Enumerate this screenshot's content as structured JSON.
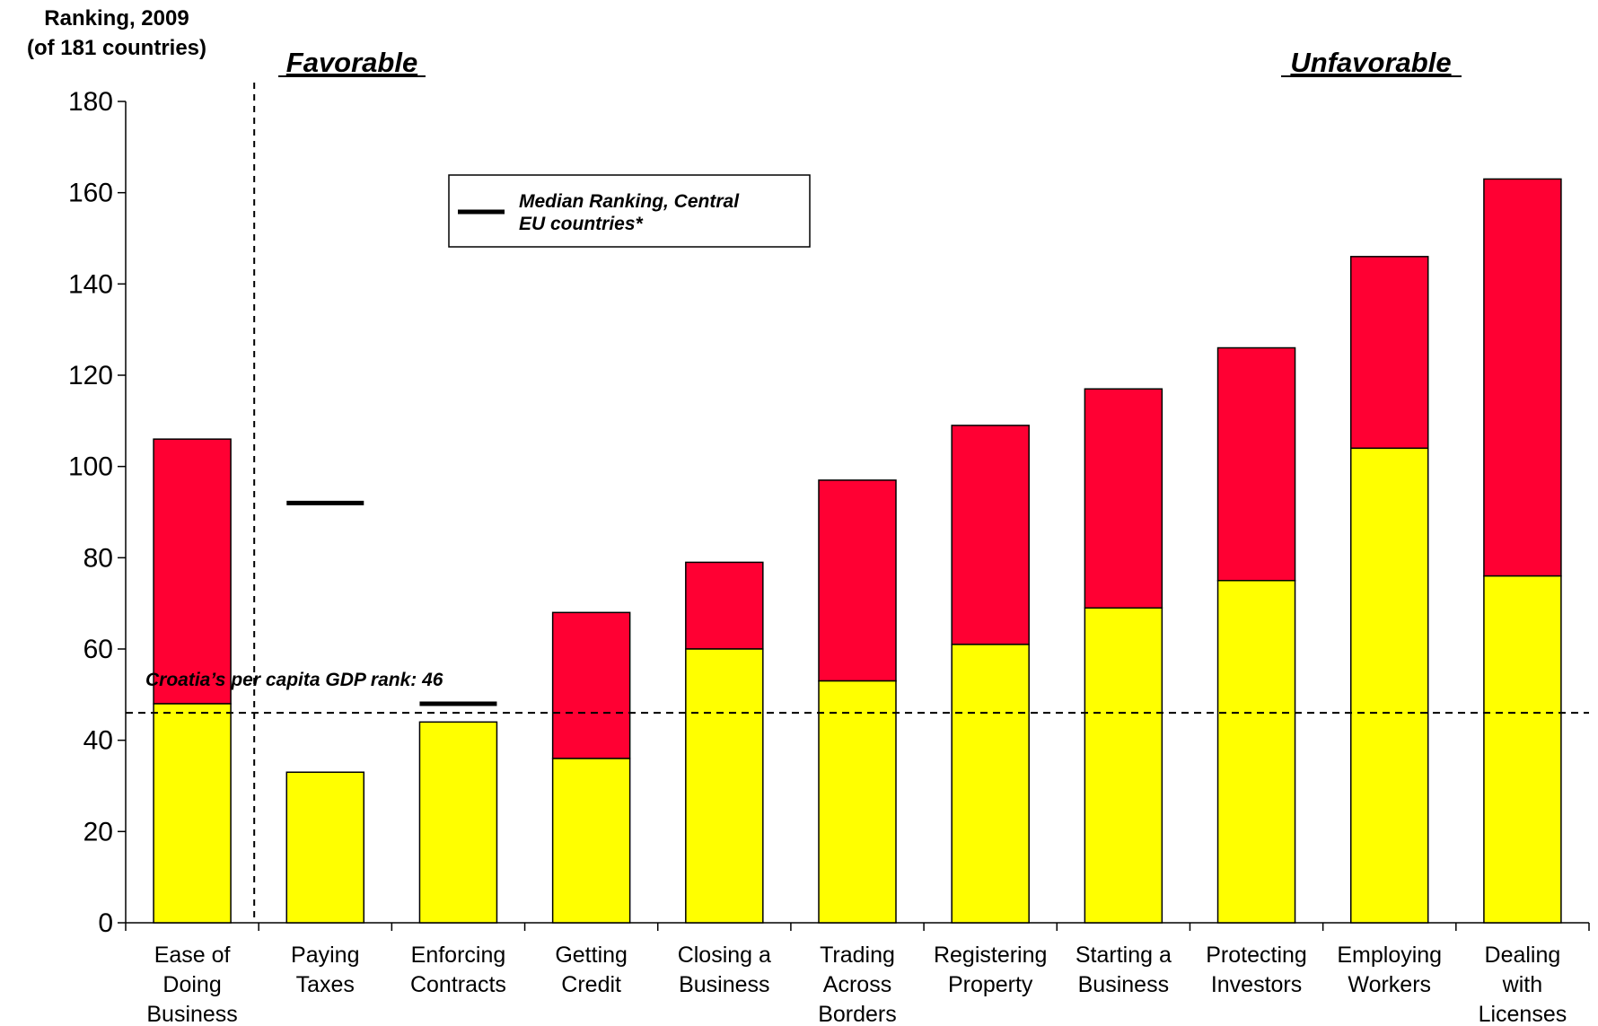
{
  "chart_data": {
    "type": "bar",
    "ylabel": [
      "Ranking, 2009",
      "(of 181 countries)"
    ],
    "ylim": [
      0,
      180
    ],
    "yticks": [
      0,
      20,
      40,
      60,
      80,
      100,
      120,
      140,
      160,
      180
    ],
    "categories": [
      [
        "Ease of",
        "Doing",
        "Business"
      ],
      [
        "Paying",
        "Taxes"
      ],
      [
        "Enforcing",
        "Contracts"
      ],
      [
        "Getting",
        "Credit"
      ],
      [
        "Closing a",
        "Business"
      ],
      [
        "Trading",
        "Across",
        "Borders"
      ],
      [
        "Registering",
        "Property"
      ],
      [
        "Starting a",
        "Business"
      ],
      [
        "Protecting",
        "Investors"
      ],
      [
        "Employing",
        "Workers"
      ],
      [
        "Dealing",
        "with",
        "Licenses"
      ]
    ],
    "series": [
      {
        "values": [
          48,
          33,
          44,
          36,
          60,
          53,
          61,
          69,
          75,
          104,
          76
        ],
        "color": "#FFFF00"
      },
      {
        "values": [
          106,
          33,
          44,
          68,
          79,
          97,
          109,
          117,
          126,
          146,
          163
        ],
        "color": "#FF0033"
      }
    ],
    "median_markers": [
      {
        "category_index": 1,
        "value": 92
      },
      {
        "category_index": 2,
        "value": 48
      }
    ],
    "reference_line": {
      "value": 46,
      "label": "Croatia’s per capita GDP rank: 46"
    },
    "section_labels": {
      "left": "Favorable",
      "right": "Unfavorable"
    },
    "legend": {
      "label": [
        "Median Ranking, Central",
        "EU countries*"
      ],
      "position": "top-center"
    },
    "grid": false
  }
}
